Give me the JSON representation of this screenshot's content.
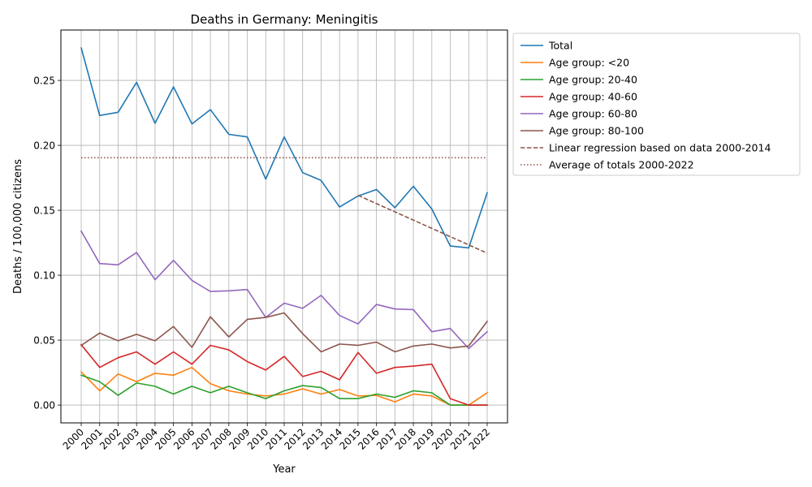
{
  "chart_data": {
    "type": "line",
    "title": "Deaths in Germany: Meningitis",
    "xlabel": "Year",
    "ylabel": "Deaths / 100,000 citizens",
    "x": [
      2000,
      2001,
      2002,
      2003,
      2004,
      2005,
      2006,
      2007,
      2008,
      2009,
      2010,
      2011,
      2012,
      2013,
      2014,
      2015,
      2016,
      2017,
      2018,
      2019,
      2020,
      2021,
      2022
    ],
    "x_tick_labels": [
      "2000",
      "2001",
      "2002",
      "2003",
      "2004",
      "2005",
      "2006",
      "2007",
      "2008",
      "2009",
      "2010",
      "2011",
      "2012",
      "2013",
      "2014",
      "2015",
      "2016",
      "2017",
      "2018",
      "2019",
      "2020",
      "2021",
      "2022"
    ],
    "ylim": [
      -0.0137,
      0.2888
    ],
    "y_ticks": [
      0.0,
      0.05,
      0.1,
      0.15,
      0.2,
      0.25
    ],
    "y_tick_labels": [
      "0.00",
      "0.05",
      "0.10",
      "0.15",
      "0.20",
      "0.25"
    ],
    "grid": true,
    "legend_placement": "outside-upper-right",
    "series": [
      {
        "name": "Total",
        "color": "#1f77b4",
        "style": "solid",
        "values": [
          0.275,
          0.223,
          0.2255,
          0.2485,
          0.217,
          0.245,
          0.2165,
          0.2275,
          0.2085,
          0.2065,
          0.174,
          0.2065,
          0.179,
          0.173,
          0.1525,
          0.161,
          0.166,
          0.152,
          0.1685,
          0.151,
          0.1225,
          0.121,
          0.1635
        ]
      },
      {
        "name": "Age group: <20",
        "color": "#ff7f0e",
        "style": "solid",
        "values": [
          0.0255,
          0.011,
          0.024,
          0.018,
          0.0245,
          0.023,
          0.029,
          0.0165,
          0.011,
          0.0085,
          0.007,
          0.0085,
          0.0125,
          0.0085,
          0.012,
          0.007,
          0.0075,
          0.0025,
          0.0085,
          0.007,
          0.0,
          0.0,
          0.0095
        ]
      },
      {
        "name": "Age group: 20-40",
        "color": "#2ca02c",
        "style": "solid",
        "values": [
          0.023,
          0.018,
          0.0075,
          0.017,
          0.0145,
          0.0085,
          0.0145,
          0.0095,
          0.0145,
          0.0095,
          0.005,
          0.011,
          0.015,
          0.0135,
          0.005,
          0.005,
          0.0085,
          0.006,
          0.011,
          0.0095,
          0.0,
          0.0,
          0.0
        ]
      },
      {
        "name": "Age group: 40-60",
        "color": "#d62728",
        "style": "solid",
        "values": [
          0.0465,
          0.029,
          0.0365,
          0.041,
          0.0315,
          0.041,
          0.0315,
          0.046,
          0.0425,
          0.0335,
          0.027,
          0.0375,
          0.022,
          0.026,
          0.0195,
          0.0405,
          0.0245,
          0.029,
          0.03,
          0.0315,
          0.005,
          0.0,
          0.0
        ]
      },
      {
        "name": "Age group: 60-80",
        "color": "#9467bd",
        "style": "solid",
        "values": [
          0.134,
          0.109,
          0.108,
          0.1175,
          0.0965,
          0.1115,
          0.096,
          0.0875,
          0.088,
          0.089,
          0.0675,
          0.0785,
          0.0745,
          0.0845,
          0.069,
          0.0625,
          0.0775,
          0.074,
          0.0735,
          0.0565,
          0.059,
          0.0435,
          0.0565
        ]
      },
      {
        "name": "Age group: 80-100",
        "color": "#8c564b",
        "style": "solid",
        "values": [
          0.046,
          0.0555,
          0.0495,
          0.0545,
          0.0495,
          0.0605,
          0.0445,
          0.068,
          0.0525,
          0.066,
          0.0675,
          0.071,
          0.055,
          0.041,
          0.047,
          0.046,
          0.0485,
          0.041,
          0.0455,
          0.047,
          0.044,
          0.0455,
          0.0645
        ]
      },
      {
        "name": "Linear regression based on data 2000-2014",
        "color": "#8c564b",
        "style": "dashed",
        "x": [
          2015,
          2022
        ],
        "values": [
          0.1615,
          0.117
        ]
      },
      {
        "name": "Average of totals 2000-2022",
        "color": "#8c564b",
        "style": "dotted",
        "x": [
          2000,
          2022
        ],
        "values": [
          0.1905,
          0.1905
        ]
      }
    ]
  }
}
